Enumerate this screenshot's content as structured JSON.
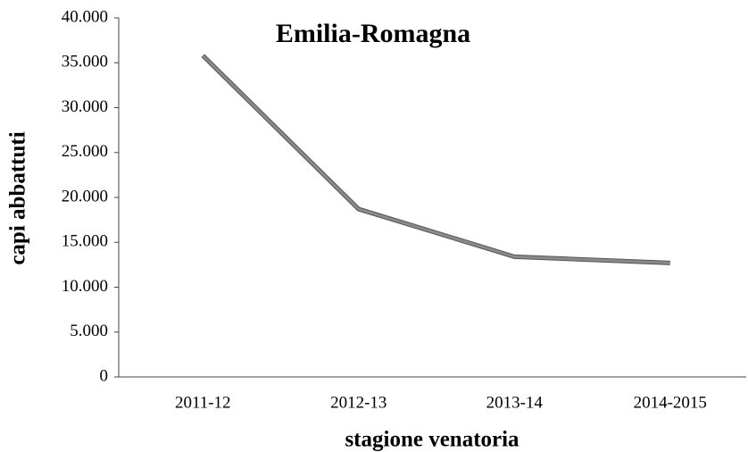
{
  "chart_data": {
    "type": "line",
    "title": "Emilia-Romagna",
    "x_label": "stagione venatoria",
    "y_label": "capi abbattuti",
    "categories": [
      "2011-12",
      "2012-13",
      "2013-14",
      "2014-2015"
    ],
    "values": [
      35800,
      18700,
      13400,
      12700
    ],
    "color": "#8a8a8a",
    "ylim": [
      0,
      40000
    ],
    "yticks": [
      0,
      {
        "value": 5000,
        "label": "5.000"
      },
      {
        "value": 10000,
        "label": "10.000"
      },
      {
        "value": 15000,
        "label": "15.000"
      },
      {
        "value": 20000,
        "label": "20.000"
      },
      {
        "value": 25000,
        "label": "25.000"
      },
      {
        "value": 30000,
        "label": "30.000"
      },
      {
        "value": 35000,
        "label": "35.000"
      },
      {
        "value": 40000,
        "label": "40.000"
      }
    ],
    "grid": false
  }
}
